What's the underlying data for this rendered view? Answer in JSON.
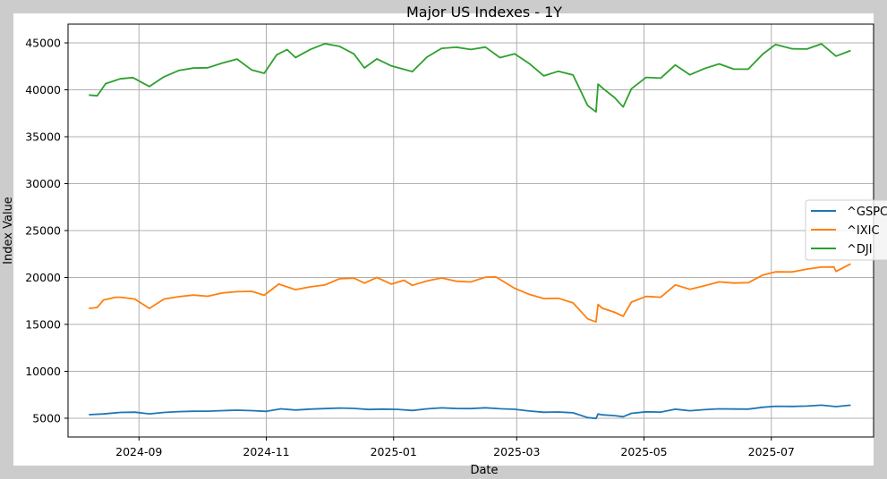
{
  "chart_data": {
    "type": "line",
    "title": "Major US Indexes - 1Y",
    "xlabel": "Date",
    "ylabel": "Index Value",
    "x_tick_labels": [
      "2024-09",
      "2024-11",
      "2025-01",
      "2025-03",
      "2025-05",
      "2025-07"
    ],
    "y_tick_labels": [
      "5000",
      "10000",
      "15000",
      "20000",
      "25000",
      "30000",
      "35000",
      "40000",
      "45000"
    ],
    "xlim": [
      "2024-07-29",
      "2025-08-19"
    ],
    "ylim": [
      3000,
      47000
    ],
    "grid": true,
    "legend_position": "center-right",
    "series": [
      {
        "name": "^GSPC",
        "color": "#1f77b4",
        "points": [
          [
            "2024-08-08",
            5380
          ],
          [
            "2024-08-15",
            5460
          ],
          [
            "2024-08-23",
            5620
          ],
          [
            "2024-08-30",
            5650
          ],
          [
            "2024-09-06",
            5470
          ],
          [
            "2024-09-13",
            5620
          ],
          [
            "2024-09-20",
            5700
          ],
          [
            "2024-09-27",
            5740
          ],
          [
            "2024-10-04",
            5750
          ],
          [
            "2024-10-11",
            5810
          ],
          [
            "2024-10-18",
            5860
          ],
          [
            "2024-10-25",
            5810
          ],
          [
            "2024-11-01",
            5730
          ],
          [
            "2024-11-08",
            6000
          ],
          [
            "2024-11-15",
            5880
          ],
          [
            "2024-11-22",
            5970
          ],
          [
            "2024-11-29",
            6030
          ],
          [
            "2024-12-06",
            6090
          ],
          [
            "2024-12-13",
            6050
          ],
          [
            "2024-12-20",
            5930
          ],
          [
            "2024-12-27",
            5970
          ],
          [
            "2025-01-03",
            5940
          ],
          [
            "2025-01-10",
            5830
          ],
          [
            "2025-01-17",
            6000
          ],
          [
            "2025-01-24",
            6100
          ],
          [
            "2025-01-31",
            6040
          ],
          [
            "2025-02-07",
            6030
          ],
          [
            "2025-02-14",
            6110
          ],
          [
            "2025-02-21",
            6010
          ],
          [
            "2025-02-28",
            5950
          ],
          [
            "2025-03-07",
            5770
          ],
          [
            "2025-03-14",
            5640
          ],
          [
            "2025-03-21",
            5670
          ],
          [
            "2025-03-28",
            5580
          ],
          [
            "2025-04-04",
            5070
          ],
          [
            "2025-04-08",
            4980
          ],
          [
            "2025-04-09",
            5460
          ],
          [
            "2025-04-11",
            5360
          ],
          [
            "2025-04-17",
            5280
          ],
          [
            "2025-04-21",
            5160
          ],
          [
            "2025-04-25",
            5520
          ],
          [
            "2025-05-02",
            5690
          ],
          [
            "2025-05-09",
            5660
          ],
          [
            "2025-05-16",
            5960
          ],
          [
            "2025-05-23",
            5800
          ],
          [
            "2025-05-30",
            5910
          ],
          [
            "2025-06-06",
            6000
          ],
          [
            "2025-06-13",
            5980
          ],
          [
            "2025-06-20",
            5970
          ],
          [
            "2025-06-27",
            6170
          ],
          [
            "2025-07-03",
            6280
          ],
          [
            "2025-07-11",
            6260
          ],
          [
            "2025-07-18",
            6300
          ],
          [
            "2025-07-25",
            6390
          ],
          [
            "2025-08-01",
            6240
          ],
          [
            "2025-08-08",
            6390
          ]
        ]
      },
      {
        "name": "^IXIC",
        "color": "#ff7f0e",
        "points": [
          [
            "2024-08-08",
            16700
          ],
          [
            "2024-08-12",
            16800
          ],
          [
            "2024-08-15",
            17600
          ],
          [
            "2024-08-21",
            17900
          ],
          [
            "2024-08-23",
            17900
          ],
          [
            "2024-08-30",
            17700
          ],
          [
            "2024-09-06",
            16700
          ],
          [
            "2024-09-13",
            17700
          ],
          [
            "2024-09-20",
            17950
          ],
          [
            "2024-09-27",
            18120
          ],
          [
            "2024-10-04",
            18000
          ],
          [
            "2024-10-11",
            18350
          ],
          [
            "2024-10-18",
            18490
          ],
          [
            "2024-10-25",
            18520
          ],
          [
            "2024-10-31",
            18100
          ],
          [
            "2024-11-07",
            19300
          ],
          [
            "2024-11-15",
            18700
          ],
          [
            "2024-11-22",
            19000
          ],
          [
            "2024-11-29",
            19200
          ],
          [
            "2024-12-06",
            19860
          ],
          [
            "2024-12-13",
            19930
          ],
          [
            "2024-12-18",
            19400
          ],
          [
            "2024-12-24",
            20000
          ],
          [
            "2024-12-31",
            19300
          ],
          [
            "2025-01-06",
            19700
          ],
          [
            "2025-01-10",
            19160
          ],
          [
            "2025-01-17",
            19630
          ],
          [
            "2025-01-24",
            19950
          ],
          [
            "2025-01-31",
            19600
          ],
          [
            "2025-02-07",
            19520
          ],
          [
            "2025-02-14",
            20030
          ],
          [
            "2025-02-19",
            20060
          ],
          [
            "2025-02-28",
            18850
          ],
          [
            "2025-03-07",
            18200
          ],
          [
            "2025-03-14",
            17750
          ],
          [
            "2025-03-21",
            17780
          ],
          [
            "2025-03-28",
            17300
          ],
          [
            "2025-04-04",
            15590
          ],
          [
            "2025-04-08",
            15270
          ],
          [
            "2025-04-09",
            17120
          ],
          [
            "2025-04-11",
            16720
          ],
          [
            "2025-04-17",
            16290
          ],
          [
            "2025-04-21",
            15870
          ],
          [
            "2025-04-25",
            17380
          ],
          [
            "2025-05-02",
            17980
          ],
          [
            "2025-05-09",
            17900
          ],
          [
            "2025-05-16",
            19210
          ],
          [
            "2025-05-23",
            18740
          ],
          [
            "2025-05-30",
            19110
          ],
          [
            "2025-06-06",
            19530
          ],
          [
            "2025-06-13",
            19410
          ],
          [
            "2025-06-20",
            19450
          ],
          [
            "2025-06-27",
            20270
          ],
          [
            "2025-07-03",
            20600
          ],
          [
            "2025-07-11",
            20590
          ],
          [
            "2025-07-18",
            20900
          ],
          [
            "2025-07-25",
            21100
          ],
          [
            "2025-07-31",
            21120
          ],
          [
            "2025-08-01",
            20650
          ],
          [
            "2025-08-08",
            21450
          ]
        ]
      },
      {
        "name": "^DJI",
        "color": "#2ca02c",
        "points": [
          [
            "2024-08-08",
            39450
          ],
          [
            "2024-08-12",
            39360
          ],
          [
            "2024-08-16",
            40660
          ],
          [
            "2024-08-23",
            41170
          ],
          [
            "2024-08-29",
            41300
          ],
          [
            "2024-09-06",
            40350
          ],
          [
            "2024-09-13",
            41390
          ],
          [
            "2024-09-20",
            42060
          ],
          [
            "2024-09-27",
            42310
          ],
          [
            "2024-10-04",
            42350
          ],
          [
            "2024-10-11",
            42860
          ],
          [
            "2024-10-18",
            43280
          ],
          [
            "2024-10-25",
            42110
          ],
          [
            "2024-10-31",
            41760
          ],
          [
            "2024-11-06",
            43730
          ],
          [
            "2024-11-11",
            44290
          ],
          [
            "2024-11-15",
            43440
          ],
          [
            "2024-11-22",
            44300
          ],
          [
            "2024-11-29",
            44910
          ],
          [
            "2024-12-06",
            44640
          ],
          [
            "2024-12-13",
            43830
          ],
          [
            "2024-12-18",
            42330
          ],
          [
            "2024-12-24",
            43300
          ],
          [
            "2024-12-31",
            42540
          ],
          [
            "2025-01-10",
            41940
          ],
          [
            "2025-01-17",
            43490
          ],
          [
            "2025-01-24",
            44420
          ],
          [
            "2025-01-31",
            44540
          ],
          [
            "2025-02-07",
            44300
          ],
          [
            "2025-02-14",
            44550
          ],
          [
            "2025-02-21",
            43430
          ],
          [
            "2025-02-28",
            43840
          ],
          [
            "2025-03-07",
            42800
          ],
          [
            "2025-03-14",
            41490
          ],
          [
            "2025-03-21",
            41980
          ],
          [
            "2025-03-28",
            41580
          ],
          [
            "2025-04-04",
            38310
          ],
          [
            "2025-04-08",
            37650
          ],
          [
            "2025-04-09",
            40610
          ],
          [
            "2025-04-11",
            40210
          ],
          [
            "2025-04-17",
            39140
          ],
          [
            "2025-04-21",
            38170
          ],
          [
            "2025-04-25",
            40110
          ],
          [
            "2025-05-02",
            41320
          ],
          [
            "2025-05-09",
            41250
          ],
          [
            "2025-05-16",
            42650
          ],
          [
            "2025-05-23",
            41600
          ],
          [
            "2025-05-30",
            42270
          ],
          [
            "2025-06-06",
            42760
          ],
          [
            "2025-06-13",
            42200
          ],
          [
            "2025-06-20",
            42210
          ],
          [
            "2025-06-27",
            43820
          ],
          [
            "2025-07-03",
            44830
          ],
          [
            "2025-07-11",
            44370
          ],
          [
            "2025-07-18",
            44340
          ],
          [
            "2025-07-25",
            44900
          ],
          [
            "2025-08-01",
            43590
          ],
          [
            "2025-08-08",
            44180
          ]
        ]
      }
    ]
  }
}
